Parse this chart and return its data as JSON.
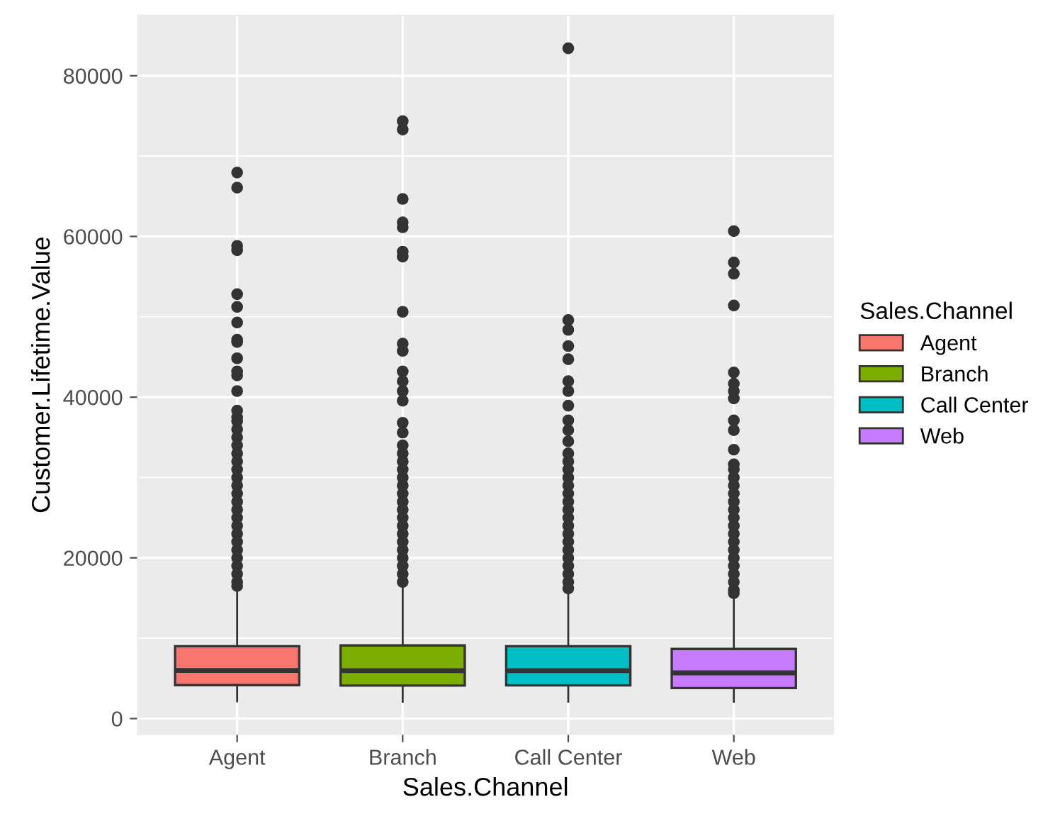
{
  "chart_data": {
    "type": "box",
    "xlabel": "Sales.Channel",
    "ylabel": "Customer.Lifetime.Value",
    "legend_title": "Sales.Channel",
    "legend": "right",
    "grid": true,
    "categories": [
      "Agent",
      "Branch",
      "Call Center",
      "Web"
    ],
    "ylim": [
      -1950,
      87500
    ],
    "yticks": [
      0,
      20000,
      40000,
      60000,
      80000
    ],
    "series": [
      {
        "name": "Agent",
        "color": "#f8766d",
        "boxes": [
          {
            "low": 2150,
            "q1": 4160,
            "median": 5980,
            "q3": 9010,
            "high": 16140,
            "outliers": [
              67950,
              66070,
              58830,
              58290,
              52810,
              51230,
              49280,
              47150,
              46850,
              44840,
              43200,
              42710,
              40760,
              38330,
              37500,
              37000,
              36000,
              35000,
              34000,
              33000,
              32000,
              31000,
              30000,
              29000,
              28000,
              27000,
              26000,
              25000,
              24000,
              23000,
              22000,
              21000,
              20000,
              19000,
              18000,
              17000,
              16500
            ]
          },
          null,
          null,
          null
        ]
      },
      {
        "name": "Branch",
        "color": "#7cae00",
        "boxes": [
          null,
          {
            "low": 2100,
            "q1": 4100,
            "median": 5960,
            "q3": 9100,
            "high": 16750,
            "outliers": [
              74350,
              73310,
              64670,
              61750,
              61140,
              58100,
              57490,
              50620,
              46660,
              45750,
              43200,
              41980,
              40760,
              39550,
              36810,
              35590,
              34000,
              33000,
              32000,
              31000,
              30000,
              29000,
              28000,
              27000,
              26000,
              25000,
              24000,
              23000,
              22000,
              21000,
              20000,
              19000,
              18000,
              17000
            ]
          },
          null,
          null
        ]
      },
      {
        "name": "Call Center",
        "color": "#00bfc4",
        "boxes": [
          null,
          null,
          {
            "low": 2100,
            "q1": 4130,
            "median": 5960,
            "q3": 9010,
            "high": 15840,
            "outliers": [
              83410,
              49590,
              48370,
              46360,
              44720,
              41980,
              40760,
              38940,
              37110,
              35900,
              34500,
              33000,
              32000,
              31000,
              30000,
              29000,
              28000,
              27000,
              26000,
              25000,
              24000,
              23000,
              22000,
              21000,
              20000,
              19000,
              18000,
              17000,
              16200
            ]
          },
          null
        ]
      },
      {
        "name": "Web",
        "color": "#c77cff",
        "boxes": [
          null,
          null,
          null,
          {
            "low": 2100,
            "q1": 3790,
            "median": 5680,
            "q3": 8660,
            "high": 15220,
            "outliers": [
              60660,
              56760,
              55360,
              51410,
              43070,
              41680,
              40760,
              39850,
              37110,
              35900,
              33460,
              31640,
              31030,
              30000,
              29000,
              28000,
              27000,
              26000,
              25000,
              24000,
              23000,
              22000,
              21000,
              20000,
              19000,
              18000,
              17000,
              16000,
              15600
            ]
          }
        ]
      }
    ]
  }
}
